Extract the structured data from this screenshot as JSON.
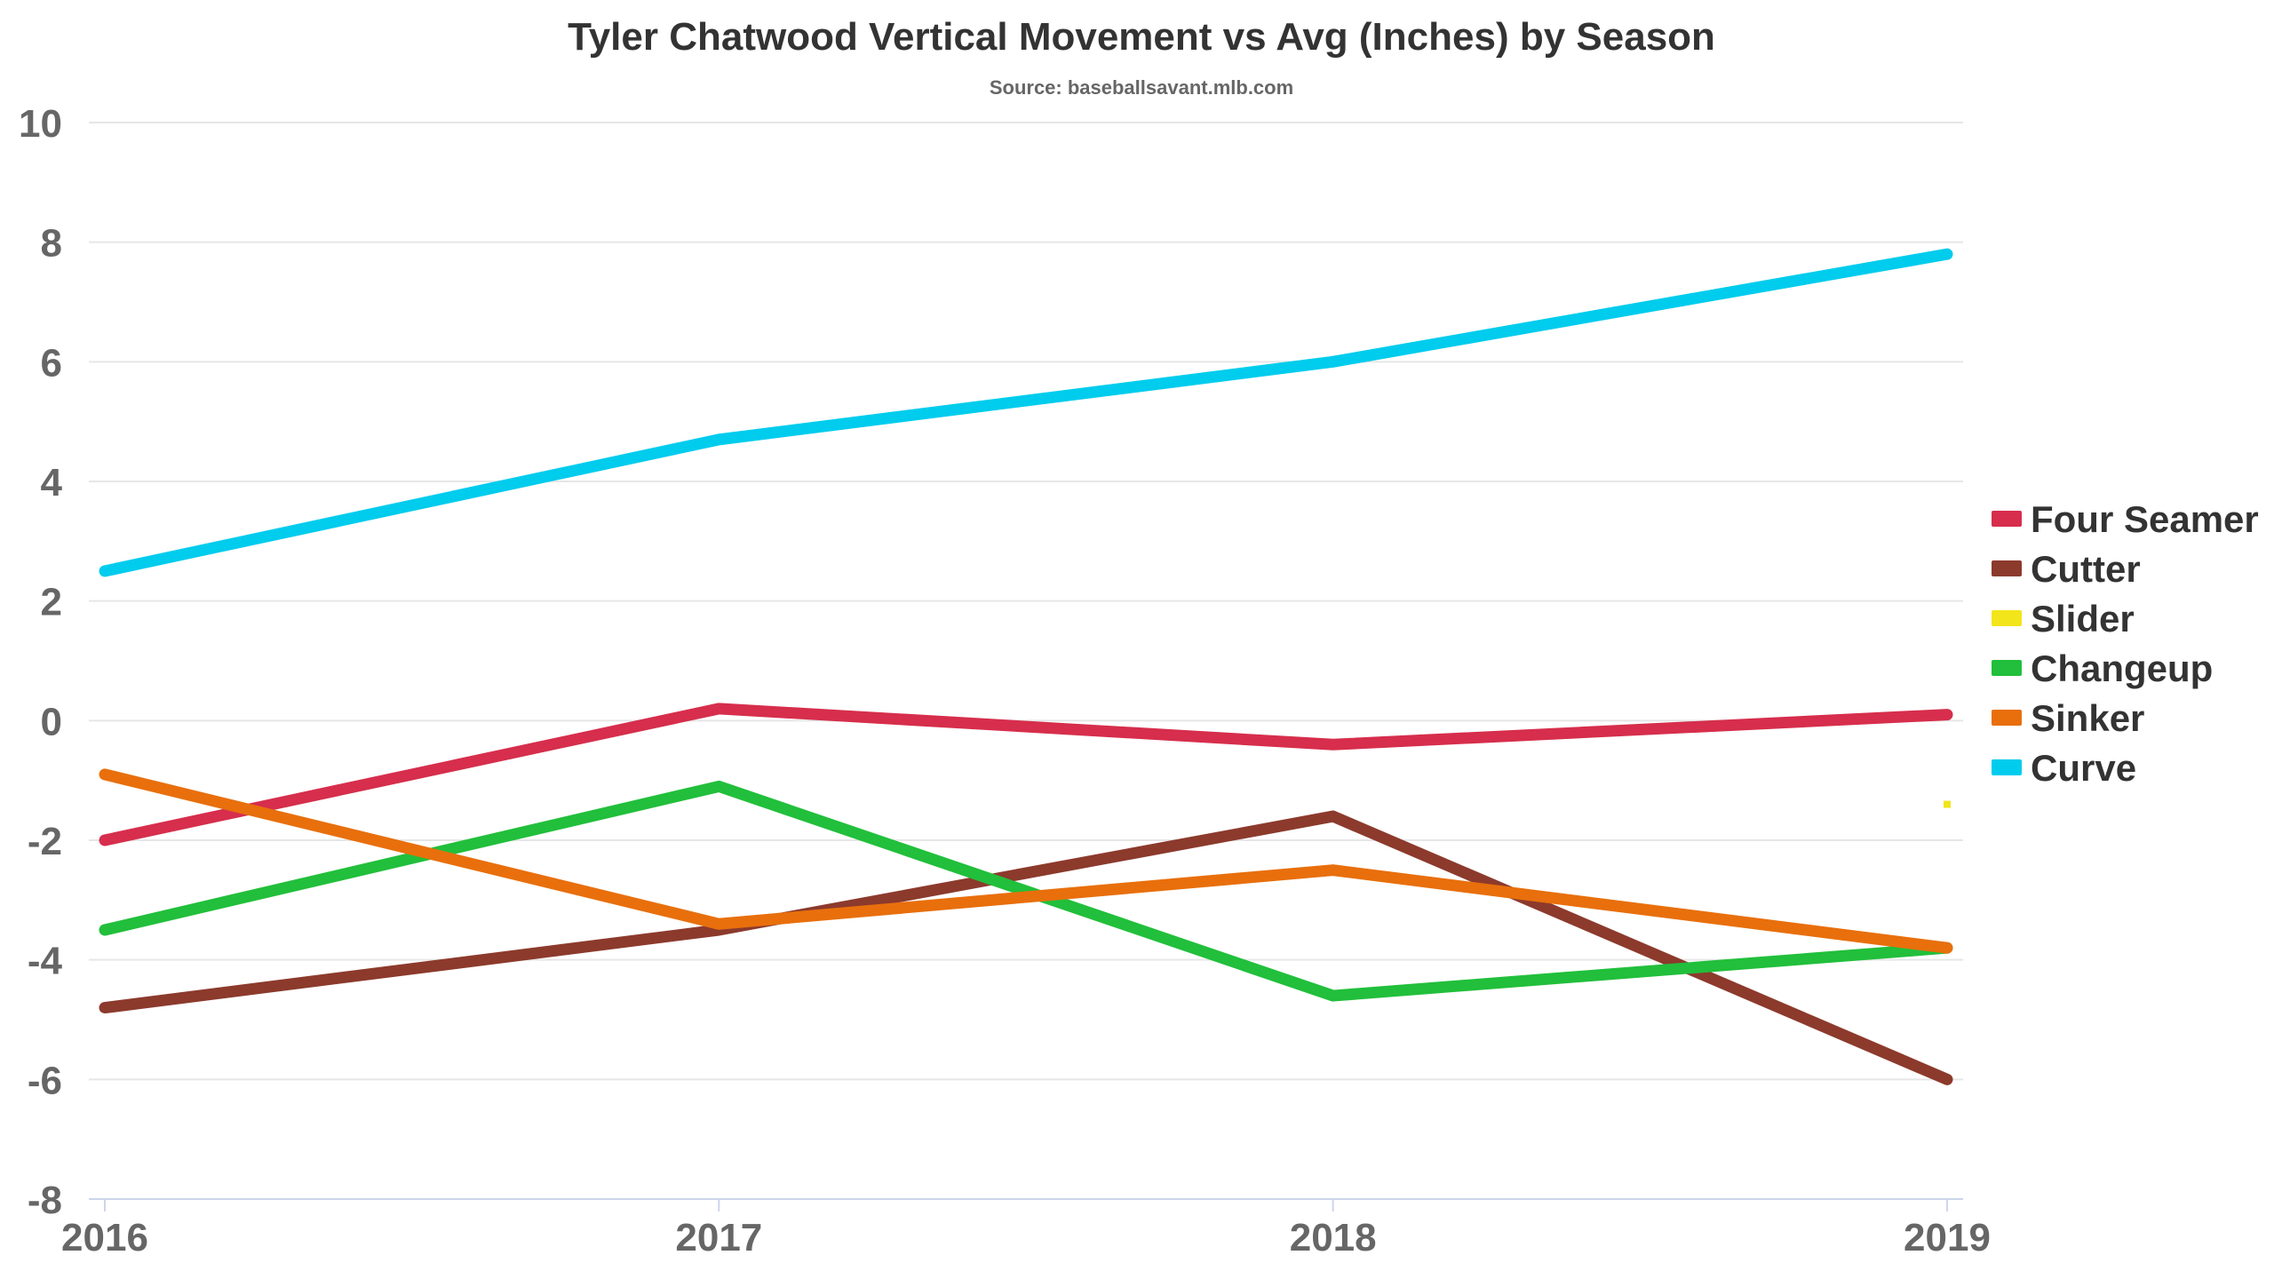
{
  "chart_data": {
    "type": "line",
    "title": "Tyler Chatwood Vertical Movement vs Avg (Inches) by Season",
    "subtitle": "Source: baseballsavant.mlb.com",
    "xlabel": "",
    "ylabel": "",
    "x": [
      "2016",
      "2017",
      "2018",
      "2019"
    ],
    "ylim": [
      -8,
      10
    ],
    "yticks": [
      "10",
      "8",
      "6",
      "4",
      "2",
      "0",
      "-2",
      "-4",
      "-6",
      "-8"
    ],
    "grid": true,
    "legend_position": "right",
    "series": [
      {
        "name": "Four Seamer",
        "color": "#d62e4c",
        "values": [
          -2.0,
          0.2,
          -0.4,
          0.1
        ]
      },
      {
        "name": "Cutter",
        "color": "#8c3a2c",
        "values": [
          -4.8,
          -3.5,
          -1.6,
          -6.0
        ]
      },
      {
        "name": "Slider",
        "color": "#f2e51a",
        "values": [
          null,
          null,
          null,
          -1.4
        ]
      },
      {
        "name": "Changeup",
        "color": "#21bf3b",
        "values": [
          -3.5,
          -1.1,
          -4.6,
          -3.8
        ]
      },
      {
        "name": "Sinker",
        "color": "#e86f0c",
        "values": [
          -0.9,
          -3.4,
          -2.5,
          -3.8
        ]
      },
      {
        "name": "Curve",
        "color": "#00cced",
        "values": [
          2.5,
          4.7,
          6.0,
          7.8
        ]
      }
    ]
  }
}
